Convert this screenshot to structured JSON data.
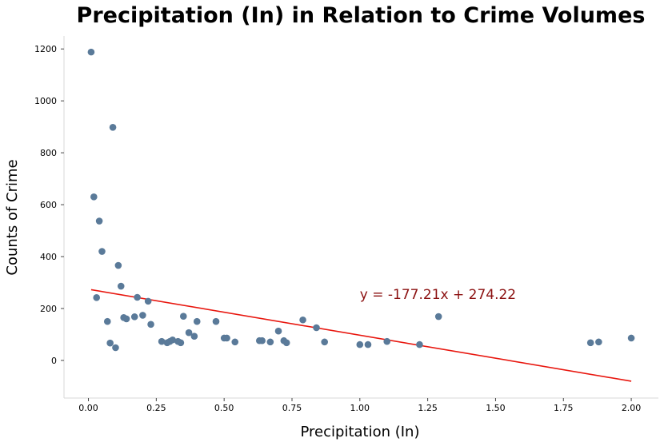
{
  "chart_data": {
    "type": "scatter",
    "title": "Precipitation (In) in Relation to Crime Volumes",
    "xlabel": "Precipitation (In)",
    "ylabel": "Counts of Crime",
    "xlim": [
      -0.09,
      2.1
    ],
    "ylim": [
      -145,
      1250
    ],
    "xticks": [
      0.0,
      0.25,
      0.5,
      0.75,
      1.0,
      1.25,
      1.5,
      1.75,
      2.0
    ],
    "xtick_labels": [
      "0.00",
      "0.25",
      "0.50",
      "0.75",
      "1.00",
      "1.25",
      "1.50",
      "1.75",
      "2.00"
    ],
    "yticks": [
      0,
      200,
      400,
      600,
      800,
      1000,
      1200
    ],
    "ytick_labels": [
      "0",
      "200",
      "400",
      "600",
      "800",
      "1000",
      "1200"
    ],
    "grid": false,
    "point_color": "#5a7a99",
    "line_color": "#e8170f",
    "annotation_color": "#8b1010",
    "points": [
      {
        "x": 0.01,
        "y": 1188
      },
      {
        "x": 0.02,
        "y": 630
      },
      {
        "x": 0.03,
        "y": 242
      },
      {
        "x": 0.04,
        "y": 537
      },
      {
        "x": 0.05,
        "y": 420
      },
      {
        "x": 0.07,
        "y": 150
      },
      {
        "x": 0.08,
        "y": 67
      },
      {
        "x": 0.09,
        "y": 898
      },
      {
        "x": 0.1,
        "y": 49
      },
      {
        "x": 0.11,
        "y": 366
      },
      {
        "x": 0.12,
        "y": 286
      },
      {
        "x": 0.13,
        "y": 165
      },
      {
        "x": 0.14,
        "y": 160
      },
      {
        "x": 0.17,
        "y": 168
      },
      {
        "x": 0.18,
        "y": 243
      },
      {
        "x": 0.2,
        "y": 174
      },
      {
        "x": 0.22,
        "y": 228
      },
      {
        "x": 0.23,
        "y": 139
      },
      {
        "x": 0.27,
        "y": 73
      },
      {
        "x": 0.29,
        "y": 68
      },
      {
        "x": 0.3,
        "y": 73
      },
      {
        "x": 0.31,
        "y": 79
      },
      {
        "x": 0.33,
        "y": 73
      },
      {
        "x": 0.34,
        "y": 68
      },
      {
        "x": 0.35,
        "y": 170
      },
      {
        "x": 0.37,
        "y": 107
      },
      {
        "x": 0.39,
        "y": 93
      },
      {
        "x": 0.4,
        "y": 150
      },
      {
        "x": 0.47,
        "y": 150
      },
      {
        "x": 0.5,
        "y": 86
      },
      {
        "x": 0.51,
        "y": 86
      },
      {
        "x": 0.54,
        "y": 71
      },
      {
        "x": 0.63,
        "y": 76
      },
      {
        "x": 0.64,
        "y": 76
      },
      {
        "x": 0.67,
        "y": 71
      },
      {
        "x": 0.7,
        "y": 113
      },
      {
        "x": 0.72,
        "y": 76
      },
      {
        "x": 0.73,
        "y": 68
      },
      {
        "x": 0.79,
        "y": 156
      },
      {
        "x": 0.84,
        "y": 126
      },
      {
        "x": 0.87,
        "y": 71
      },
      {
        "x": 1.0,
        "y": 61
      },
      {
        "x": 1.03,
        "y": 61
      },
      {
        "x": 1.1,
        "y": 73
      },
      {
        "x": 1.22,
        "y": 61
      },
      {
        "x": 1.29,
        "y": 169
      },
      {
        "x": 1.85,
        "y": 68
      },
      {
        "x": 1.88,
        "y": 71
      },
      {
        "x": 2.0,
        "y": 86
      }
    ],
    "regression": {
      "slope": -177.21,
      "intercept": 274.22,
      "x_range": [
        0.01,
        2.0
      ],
      "equation_text": "y = -177.21x + 274.22",
      "label_at": {
        "x": 1.0,
        "y": 255
      }
    }
  }
}
